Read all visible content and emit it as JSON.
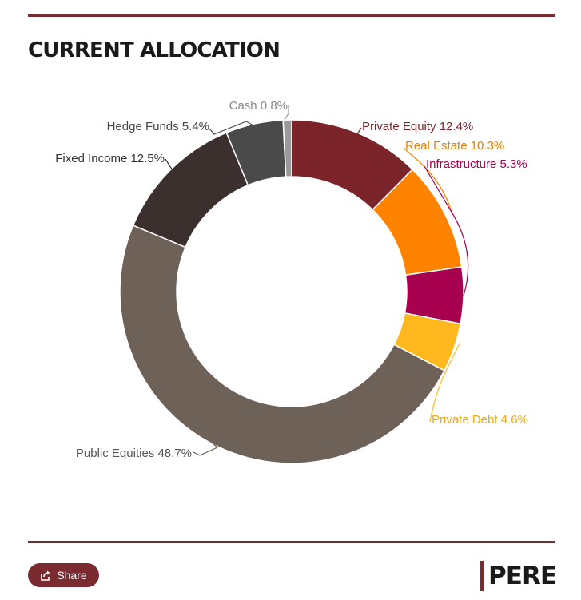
{
  "header": {
    "title": "CURRENT ALLOCATION"
  },
  "chart_data": {
    "type": "pie",
    "subtype": "donut",
    "title": "CURRENT ALLOCATION",
    "unit": "%",
    "slices": [
      {
        "label": "Private Equity",
        "value": 12.4,
        "text": "Private Equity 12.4%",
        "color": "#7b252b",
        "label_color": "#7b252b"
      },
      {
        "label": "Real Estate",
        "value": 10.3,
        "text": "Real Estate 10.3%",
        "color": "#ff8200",
        "label_color": "#f07d00"
      },
      {
        "label": "Infrastructure",
        "value": 5.3,
        "text": "Infrastructure 5.3%",
        "color": "#a6004f",
        "label_color": "#a6004f"
      },
      {
        "label": "Private Debt",
        "value": 4.6,
        "text": "Private Debt 4.6%",
        "color": "#ffb81e",
        "label_color": "#f2a90f"
      },
      {
        "label": "Public Equities",
        "value": 48.7,
        "text": "Public Equities 48.7%",
        "color": "#6e6158",
        "label_color": "#555555"
      },
      {
        "label": "Fixed Income",
        "value": 12.5,
        "text": "Fixed Income 12.5%",
        "color": "#3b302d",
        "label_color": "#333333"
      },
      {
        "label": "Hedge Funds",
        "value": 5.4,
        "text": "Hedge Funds 5.4%",
        "color": "#4b4a4b",
        "label_color": "#444444"
      },
      {
        "label": "Cash",
        "value": 0.8,
        "text": "Cash 0.8%",
        "color": "#9a9a9a",
        "label_color": "#888888"
      }
    ]
  },
  "footer": {
    "share_label": "Share",
    "logo_text": "PERE",
    "share_icon": "share-icon"
  }
}
